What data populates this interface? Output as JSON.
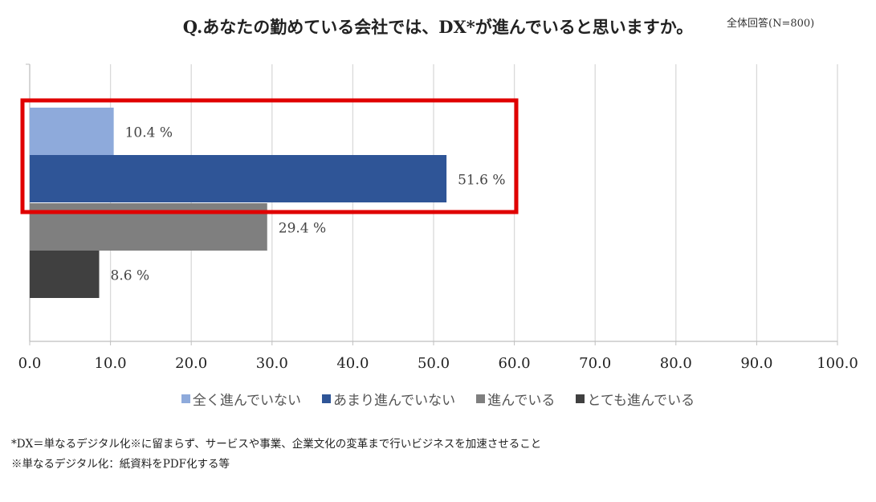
{
  "title": "Q.あなたの勤めている会社では、DX*が進んでいると思いますか。",
  "subtitle": "全体回答(N=800)",
  "chart_data": {
    "type": "bar",
    "orientation": "horizontal",
    "series": [
      {
        "name": "全く進んでいない",
        "value": 10.4,
        "label": "10.4 %",
        "color": "#8EAADB"
      },
      {
        "name": "あまり進んでいない",
        "value": 51.6,
        "label": "51.6 %",
        "color": "#2F5597"
      },
      {
        "name": "進んでいる",
        "value": 29.4,
        "label": "29.4 %",
        "color": "#7F7F7F"
      },
      {
        "name": "とても進んでいる",
        "value": 8.6,
        "label": "8.6 %",
        "color": "#404040"
      }
    ],
    "xlim": [
      0,
      100
    ],
    "xticks": [
      "0.0",
      "10.0",
      "20.0",
      "30.0",
      "40.0",
      "50.0",
      "60.0",
      "70.0",
      "80.0",
      "90.0",
      "100.0"
    ],
    "grid": true,
    "legend_position": "bottom",
    "highlight_color": "#E00000"
  },
  "notes": [
    "*DX＝単なるデジタル化※に留まらず、サービスや事業、企業文化の変革まで行いビジネスを加速させること",
    "※単なるデジタル化：紙資料をPDF化する等"
  ]
}
